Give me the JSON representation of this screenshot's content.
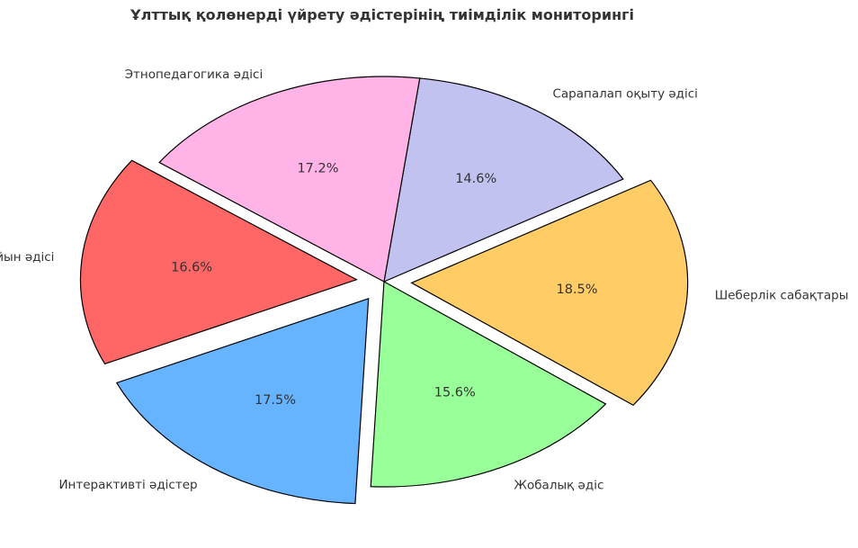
{
  "chart_data": {
    "type": "pie",
    "title": "Ұлттық қолөнерді үйрету әдістерінің тиімділік мониторингі",
    "slices": [
      {
        "label": "Сарапалап оқыту әдісі",
        "value": 14.6,
        "color": "#c2c2f0",
        "explode": false
      },
      {
        "label": "Этнопедагогика әдісі",
        "value": 17.2,
        "color": "#ffb3e6",
        "explode": false
      },
      {
        "label": "Ойын әдісі",
        "value": 16.6,
        "color": "#ff6666",
        "explode": true
      },
      {
        "label": "Интерактивті әдістер",
        "value": 17.5,
        "color": "#66b3ff",
        "explode": true
      },
      {
        "label": "Жобалық әдіс",
        "value": 15.6,
        "color": "#99ff99",
        "explode": false
      },
      {
        "label": "Шеберлік сабақтары",
        "value": 18.5,
        "color": "#ffcc66",
        "explode": true
      }
    ],
    "value_format": "percent_1dp",
    "start_angle_deg": 30,
    "direction": "counterclockwise",
    "legend": "none"
  }
}
